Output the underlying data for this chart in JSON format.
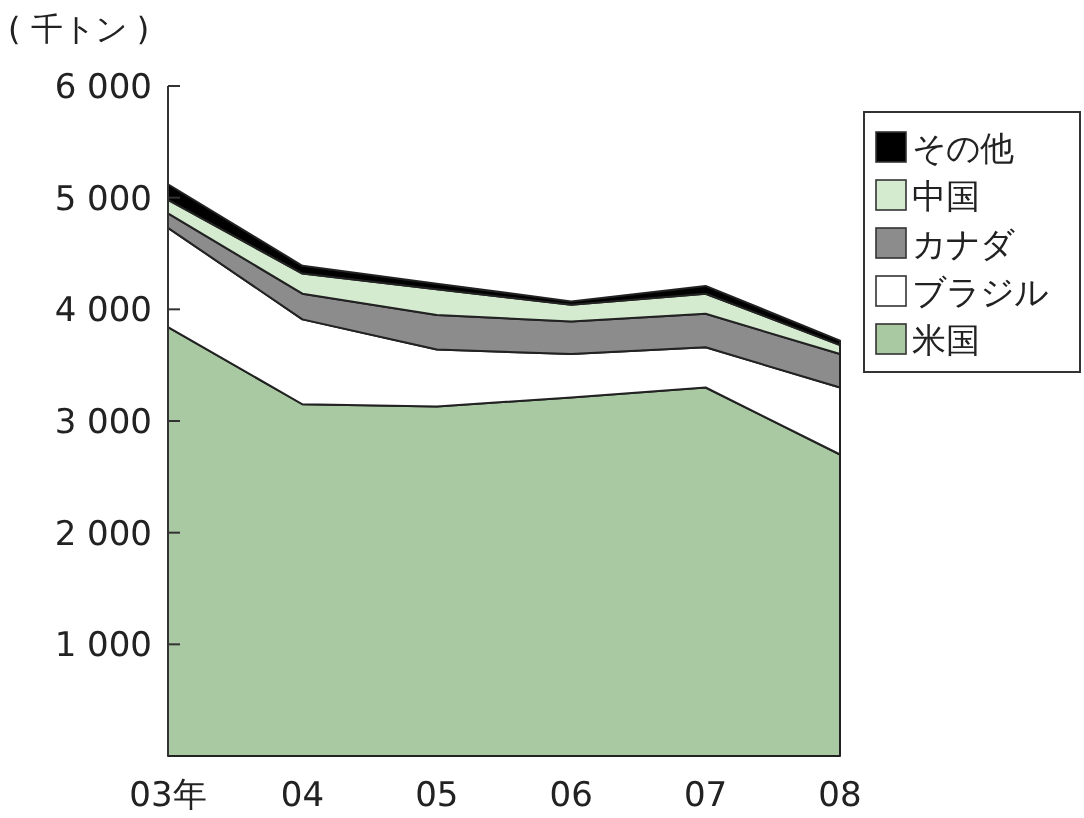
{
  "chart_data": {
    "type": "area",
    "stacked": true,
    "ylabel": "( 千トン )",
    "categories": [
      "03年",
      "04",
      "05",
      "06",
      "07",
      "08"
    ],
    "series": [
      {
        "name": "米国",
        "color": "#a9c9a2",
        "values": [
          3840,
          3150,
          3130,
          3210,
          3300,
          2700
        ]
      },
      {
        "name": "ブラジル",
        "color": "#ffffff",
        "values": [
          890,
          760,
          510,
          390,
          360,
          600
        ]
      },
      {
        "name": "カナダ",
        "color": "#8c8c8c",
        "values": [
          130,
          230,
          310,
          290,
          300,
          300
        ]
      },
      {
        "name": "中国",
        "color": "#d4ebd0",
        "values": [
          120,
          180,
          230,
          150,
          180,
          80
        ]
      },
      {
        "name": "その他",
        "color": "#000000",
        "values": [
          140,
          70,
          50,
          30,
          70,
          40
        ]
      }
    ],
    "ylim": [
      0,
      6000
    ],
    "yticks": [
      {
        "value": 1000,
        "label": "1 000"
      },
      {
        "value": 2000,
        "label": "2 000"
      },
      {
        "value": 3000,
        "label": "3 000"
      },
      {
        "value": 4000,
        "label": "4 000"
      },
      {
        "value": 5000,
        "label": "5 000"
      },
      {
        "value": 6000,
        "label": "6 000"
      }
    ],
    "legend": "top right",
    "grid": false
  }
}
